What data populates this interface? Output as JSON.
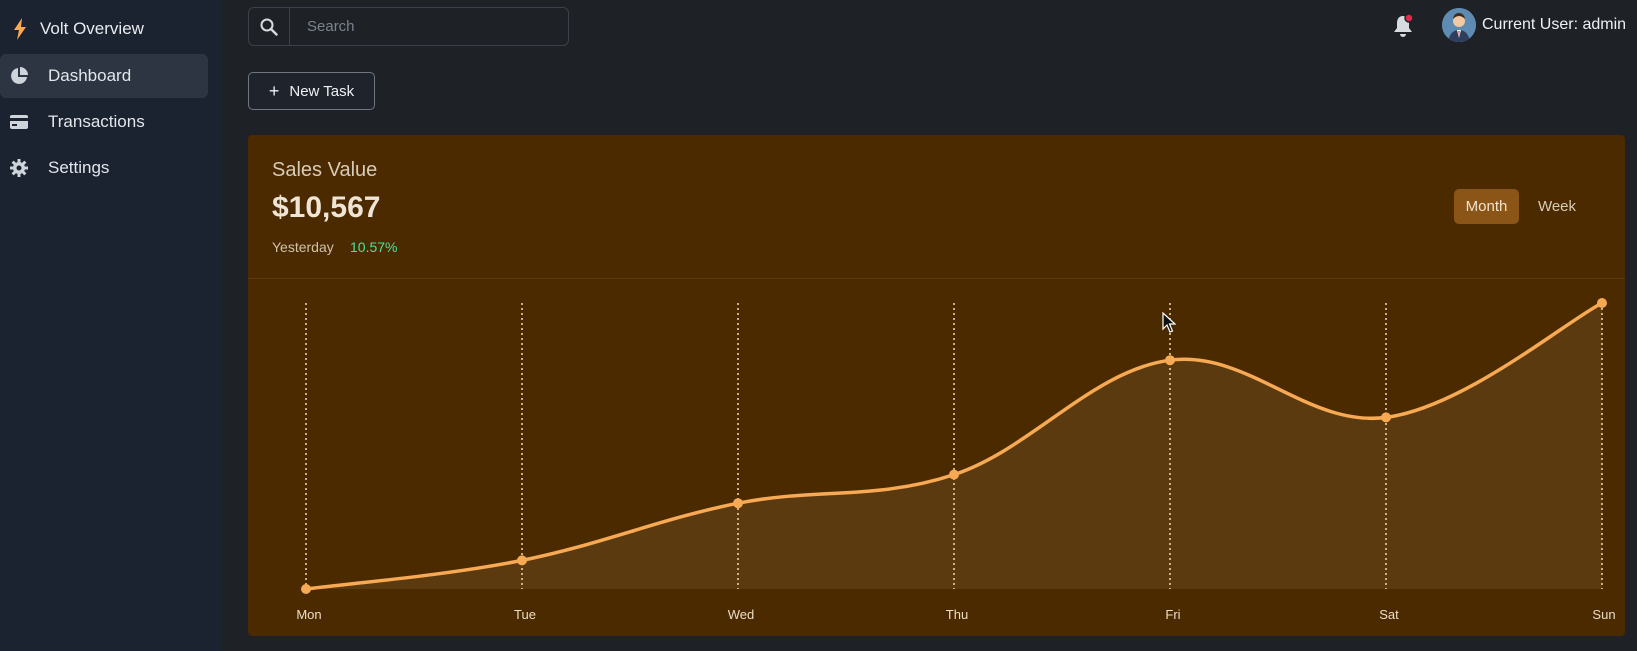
{
  "sidebar": {
    "brand": "Volt Overview",
    "items": [
      {
        "label": "Dashboard",
        "icon": "pie-chart-icon",
        "active": true
      },
      {
        "label": "Transactions",
        "icon": "credit-card-icon",
        "active": false
      },
      {
        "label": "Settings",
        "icon": "gear-icon",
        "active": false
      }
    ]
  },
  "header": {
    "search_placeholder": "Search",
    "user_label": "Current User: admin",
    "notification_icon": "bell-icon"
  },
  "toolbar": {
    "new_task_label": "New Task"
  },
  "card": {
    "title": "Sales Value",
    "value": "$10,567",
    "sub_label": "Yesterday",
    "change": "10.57%",
    "toggle": {
      "month": "Month",
      "week": "Week",
      "active": "Month"
    }
  },
  "colors": {
    "card_bg": "#4b2a00",
    "line": "#f7a954",
    "area": "#5c3a0f",
    "positive": "#49e0a0"
  },
  "chart_data": {
    "type": "area",
    "categories": [
      "Mon",
      "Tue",
      "Wed",
      "Thu",
      "Fri",
      "Sat",
      "Sun"
    ],
    "values": [
      0,
      10,
      30,
      40,
      80,
      60,
      100
    ],
    "ylim": [
      0,
      100
    ],
    "grid": "vertical-dotted"
  }
}
